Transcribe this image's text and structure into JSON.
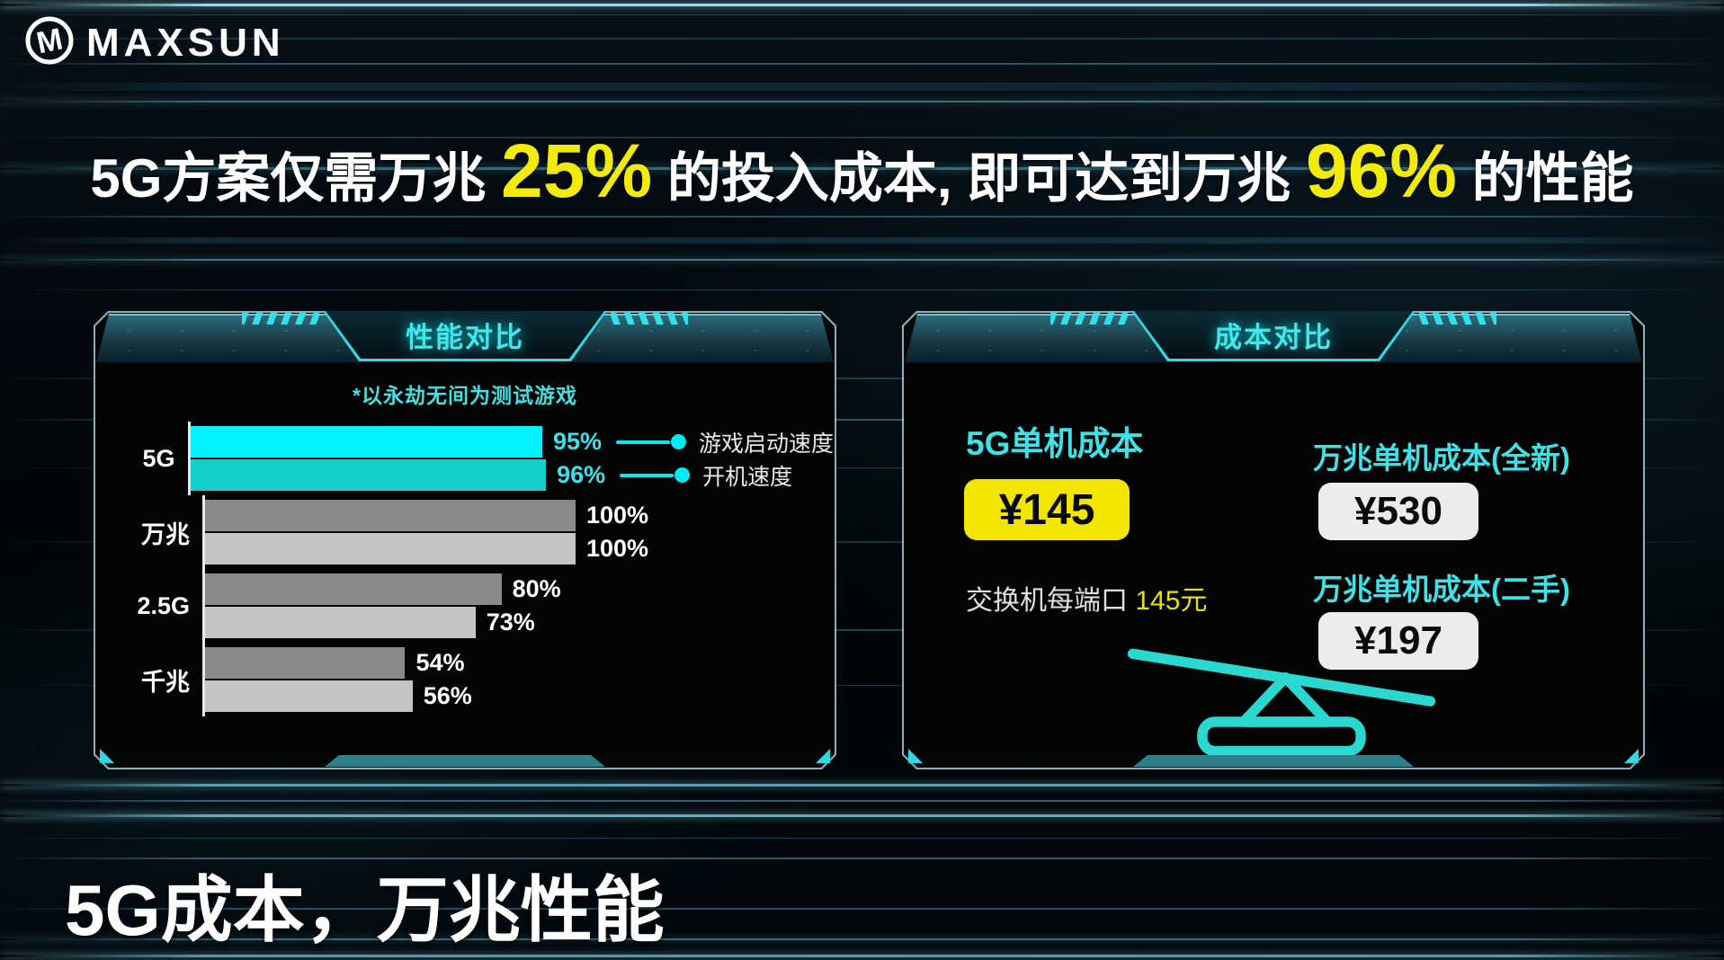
{
  "brand": {
    "name": "MAXSUN",
    "logo_icon": "maxsun-m-circle-icon"
  },
  "headline": {
    "seg1": "5G方案仅需万兆 ",
    "pct1": "25%",
    "seg2": " 的投入成本, 即可达到万兆 ",
    "pct2": "96%",
    "seg3": " 的性能"
  },
  "chart_data": {
    "type": "bar",
    "orientation": "horizontal",
    "panel_title": "性能对比",
    "note": "*以永劫无间为测试游戏",
    "categories": [
      "5G",
      "万兆",
      "2.5G",
      "千兆"
    ],
    "series": [
      {
        "name": "游戏启动速度",
        "values": [
          95,
          100,
          80,
          54
        ]
      },
      {
        "name": "开机速度",
        "values": [
          96,
          100,
          73,
          56
        ]
      }
    ],
    "unit": "%",
    "xlim": [
      0,
      100
    ],
    "value_labels": [
      [
        "95%",
        "96%"
      ],
      [
        "100%",
        "100%"
      ],
      [
        "80%",
        "73%"
      ],
      [
        "54%",
        "56%"
      ]
    ],
    "highlight_category": "5G",
    "highlight_colors": [
      "#00f2ff",
      "#12d0c9"
    ],
    "base_colors": [
      "#8a8a8a",
      "#c4c4c4"
    ],
    "legend_position": "attached to 5G bars"
  },
  "cost_panel": {
    "title": "成本对比",
    "col_5g": {
      "label": "5G单机成本",
      "price": "¥145",
      "note_prefix": "交换机每端口 ",
      "note_value": "145元"
    },
    "col_10g_new": {
      "label": "万兆单机成本(全新)",
      "price": "¥530"
    },
    "col_10g_used": {
      "label": "万兆单机成本(二手)",
      "price": "¥197"
    },
    "seesaw_icon": "seesaw-balance-icon"
  },
  "footer": {
    "tagline": "5G成本，万兆性能"
  },
  "colors": {
    "accent_cyan": "#2fd8e2",
    "accent_yellow": "#f2ea0a",
    "badge_yellow": "#f2e600",
    "badge_white": "#ececec",
    "bar_cyan_1": "#00f2ff",
    "bar_cyan_2": "#12d0c9",
    "bar_gray_1": "#8a8a8a",
    "bar_gray_2": "#c4c4c4",
    "seesaw": "#29d8cf"
  }
}
